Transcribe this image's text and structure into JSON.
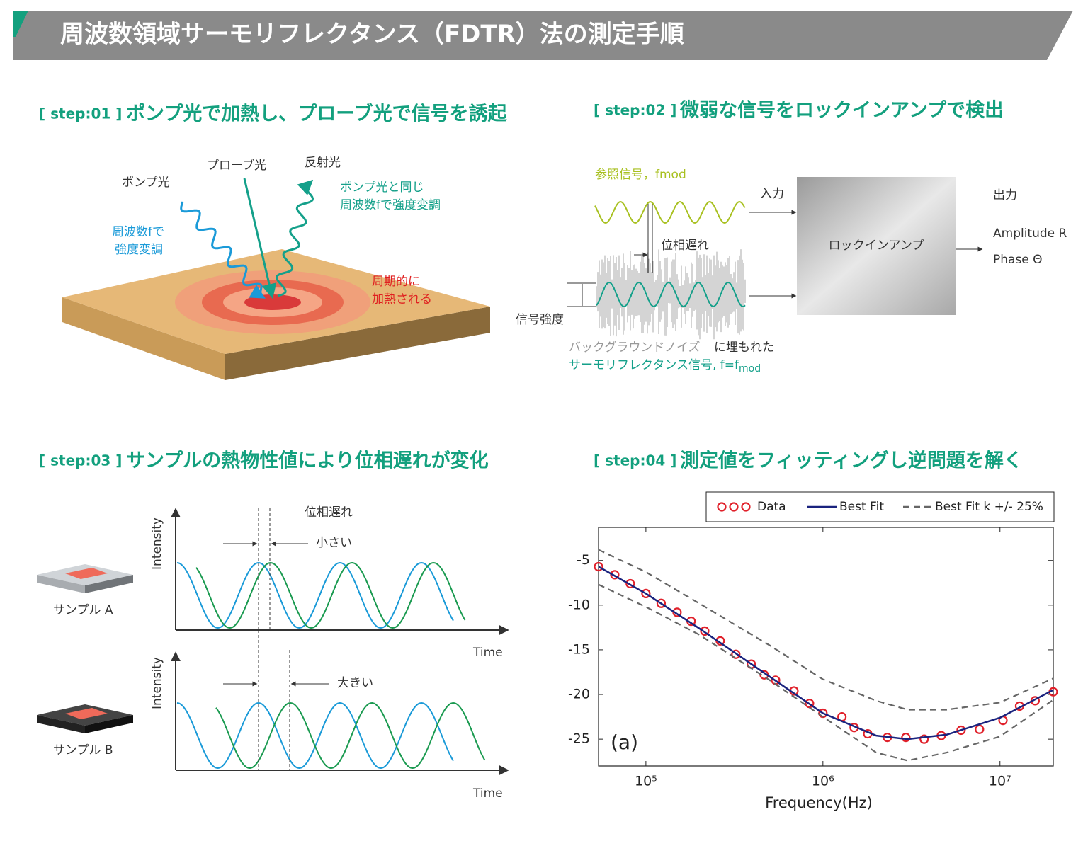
{
  "header": {
    "title": "周波数領域サーモリフレクタンス（FDTR）法の測定手順"
  },
  "step01": {
    "tag": "[ step:01 ]",
    "title": "ポンプ光で加熱し、プローブ光で信号を誘起",
    "labels": {
      "pump": "ポンプ光",
      "probe": "プローブ光",
      "reflected": "反射光",
      "modulation": [
        "周波数fで",
        "強度変調"
      ],
      "same": [
        "ポンプ光と同じ",
        "周波数fで強度変調"
      ],
      "heated": [
        "周期的に",
        "加熱される"
      ]
    }
  },
  "step02": {
    "tag": "[ step:02 ]",
    "title": "微弱な信号をロックインアンプで検出",
    "reference": "参照信号，fmod",
    "phase_lag": "位相遅れ",
    "input": "入力",
    "lockin": "ロックインアンプ",
    "output": "出力",
    "amplitude": "Amplitude R",
    "phase": "Phase Θ",
    "intensity": "信号強度",
    "caption": {
      "noise": "バックグラウンドノイズ",
      "buried": "に埋もれた",
      "signal": "サーモリフレクタンス信号, f=f",
      "sub": "mod"
    }
  },
  "step03": {
    "tag": "[ step:03 ]",
    "title": "サンプルの熱物性値により位相遅れが変化",
    "phase_lag": "位相遅れ",
    "small": "小さい",
    "large": "大きい",
    "y_label": "Intensity",
    "x_label": "Time",
    "sample_a": "サンプル A",
    "sample_b": "サンプル B"
  },
  "step04": {
    "tag": "[ step:04 ]",
    "title": "測定値をフィッティングし逆問題を解く",
    "chart": {
      "type": "line",
      "xlabel": "Frequency(Hz)",
      "annotation": "(a)",
      "xscale": "log",
      "legend": "top",
      "xlim": [
        54000,
        20000000
      ],
      "ylim": [
        -28,
        -1.3
      ],
      "xticks": [
        {
          "value": 100000,
          "label": "10⁵"
        },
        {
          "value": 1000000,
          "label": "10⁶"
        },
        {
          "value": 10000000,
          "label": "10⁷"
        }
      ],
      "yticks": [
        -5,
        -10,
        -15,
        -20,
        -25
      ],
      "series": [
        {
          "name": "Data",
          "color": "#e0202a",
          "style": "markers",
          "x": [
            54000,
            66700,
            81600,
            100000,
            122000,
            150000,
            180000,
            215000,
            263000,
            322000,
            394000,
            466000,
            540000,
            686000,
            840000,
            1000000,
            1280000,
            1500000,
            1790000,
            2310000,
            2940000,
            3730000,
            4660000,
            6030000,
            7660000,
            10400000,
            12900000,
            15800000,
            20000000
          ],
          "values": [
            -5.7,
            -6.6,
            -7.6,
            -8.7,
            -9.8,
            -10.8,
            -11.8,
            -12.9,
            -14.0,
            -15.5,
            -16.6,
            -17.8,
            -18.4,
            -19.6,
            -21.0,
            -22.1,
            -22.5,
            -23.7,
            -24.4,
            -24.8,
            -24.8,
            -25.0,
            -24.6,
            -24.0,
            -23.9,
            -22.9,
            -21.3,
            -20.7,
            -19.7
          ]
        },
        {
          "name": "Best Fit",
          "color": "#1a237e",
          "style": "solid",
          "x": [
            54000,
            100000,
            200000,
            500000,
            1000000,
            2000000,
            3000000,
            5000000,
            10000000,
            20000000
          ],
          "values": [
            -5.7,
            -8.7,
            -12.6,
            -18.0,
            -22.1,
            -24.6,
            -25.0,
            -24.5,
            -22.6,
            -19.5
          ]
        },
        {
          "name": "Best Fit k +/- 25%",
          "color": "#666666",
          "style": "dashed",
          "x": [
            54000,
            100000,
            200000,
            500000,
            1000000,
            2000000,
            3000000,
            5000000,
            10000000,
            20000000
          ],
          "values": [
            -3.8,
            -6.3,
            -9.8,
            -14.5,
            -18.3,
            -20.7,
            -21.7,
            -21.7,
            -20.9,
            -18.2
          ]
        },
        {
          "color": "#666666",
          "style": "dashed",
          "x": [
            54000,
            100000,
            200000,
            500000,
            1000000,
            2000000,
            3000000,
            5000000,
            10000000,
            20000000
          ],
          "values": [
            -7.7,
            -10.2,
            -13.3,
            -18.4,
            -22.5,
            -26.5,
            -27.4,
            -26.5,
            -24.7,
            -20.6
          ]
        }
      ]
    }
  }
}
